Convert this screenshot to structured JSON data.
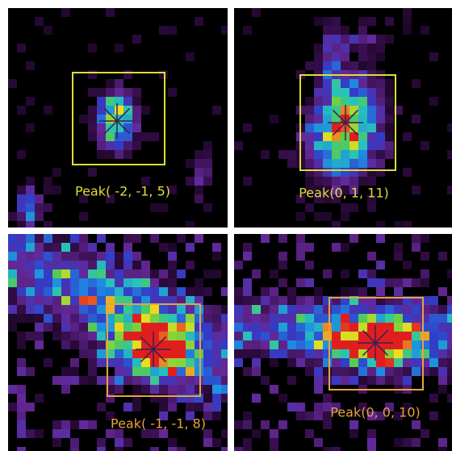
{
  "panels": [
    {
      "label": "Peak( -2, -1, 5)"
    },
    {
      "label": "Peak(0, 1, 11)"
    },
    {
      "label": "Peak( -1, -1, 8)"
    },
    {
      "label": "Peak(0, 0, 10)"
    }
  ]
}
